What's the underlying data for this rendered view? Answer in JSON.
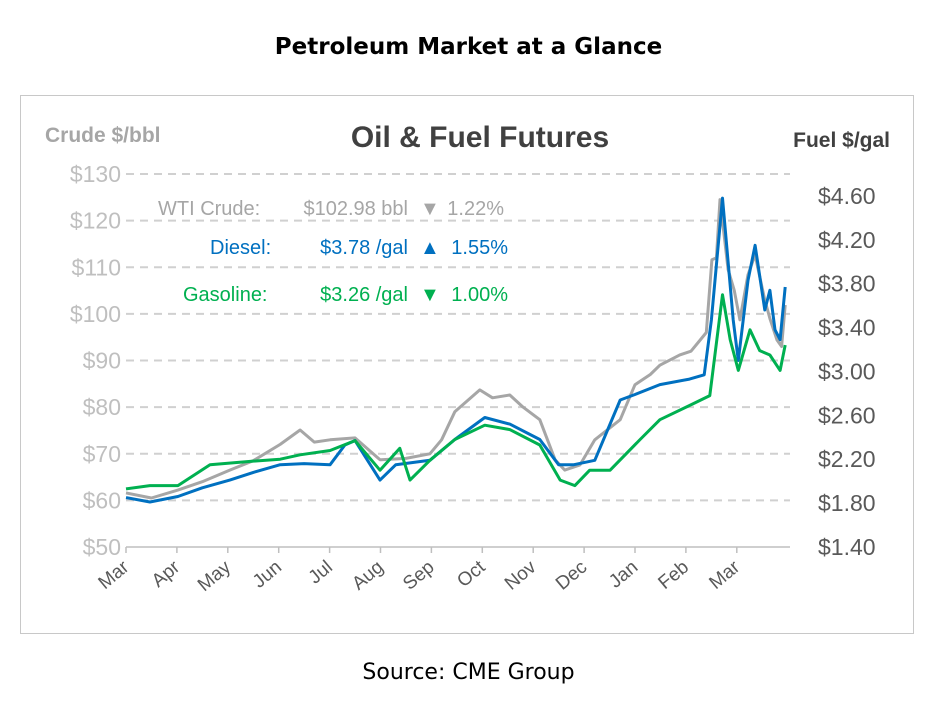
{
  "page_title": "Petroleum Market at a Glance",
  "source": "Source: CME Group",
  "colors": {
    "crude": "#a6a6a6",
    "diesel": "#0070c0",
    "gasoline": "#00b050",
    "right_axis": "#595959",
    "left_axis": "#bfbfbf"
  },
  "chart_data": {
    "type": "line",
    "title": "Oil & Fuel Futures",
    "ylabel_left": "Crude $/bbl",
    "ylabel_right": "Fuel $/gal",
    "ylim_left": [
      50,
      130
    ],
    "ylim_right": [
      1.4,
      4.8
    ],
    "yticks_left": [
      "$50",
      "$60",
      "$70",
      "$80",
      "$90",
      "$100",
      "$110",
      "$120",
      "$130"
    ],
    "yticks_right": [
      "$1.40",
      "$1.80",
      "$2.20",
      "$2.60",
      "$3.00",
      "$3.40",
      "$3.80",
      "$4.20",
      "$4.60"
    ],
    "x_unit": "months since start",
    "xticks": [
      "Mar",
      "Apr",
      "May",
      "Jun",
      "Jul",
      "Aug",
      "Sep",
      "Oct",
      "Nov",
      "Dec",
      "Jan",
      "Feb",
      "Mar"
    ],
    "grid": "horizontal dashed",
    "legend": [
      {
        "label": "WTI Crude:",
        "price": "$102.98 bbl",
        "arrow": "▼",
        "change": "1.22%"
      },
      {
        "label": "Diesel:",
        "price": "$3.78 /gal",
        "arrow": "▲",
        "change": "1.55%"
      },
      {
        "label": "Gasoline:",
        "price": "$3.26 /gal",
        "arrow": "▼",
        "change": "1.00%"
      }
    ],
    "series": [
      {
        "name": "WTI Crude",
        "axis": "left",
        "points": [
          [
            0,
            61.6
          ],
          [
            0.5,
            60.5
          ],
          [
            1.02,
            62.2
          ],
          [
            1.5,
            64
          ],
          [
            2.04,
            66.5
          ],
          [
            2.5,
            68.5
          ],
          [
            3.03,
            72
          ],
          [
            3.42,
            75.1
          ],
          [
            3.7,
            72.5
          ],
          [
            4.01,
            73
          ],
          [
            4.5,
            73.4
          ],
          [
            4.99,
            68.7
          ],
          [
            5.5,
            69
          ],
          [
            5.97,
            70
          ],
          [
            6.2,
            73
          ],
          [
            6.46,
            79
          ],
          [
            6.95,
            83.7
          ],
          [
            7.2,
            82
          ],
          [
            7.54,
            82.6
          ],
          [
            7.8,
            80
          ],
          [
            8.13,
            77.3
          ],
          [
            8.43,
            68.7
          ],
          [
            8.62,
            66.5
          ],
          [
            8.92,
            67.6
          ],
          [
            9.21,
            73
          ],
          [
            9.71,
            77.3
          ],
          [
            10,
            84.8
          ],
          [
            10.3,
            87
          ],
          [
            10.49,
            89
          ],
          [
            10.88,
            91.2
          ],
          [
            11.1,
            92
          ],
          [
            11.28,
            94.4
          ],
          [
            11.4,
            96
          ],
          [
            11.51,
            111.6
          ],
          [
            11.6,
            112
          ],
          [
            11.67,
            124.5
          ],
          [
            11.83,
            109.5
          ],
          [
            11.95,
            105
          ],
          [
            12.06,
            98.7
          ],
          [
            12.22,
            108.4
          ],
          [
            12.36,
            112.7
          ],
          [
            12.45,
            108
          ],
          [
            12.55,
            103
          ],
          [
            12.65,
            99
          ],
          [
            12.79,
            94.4
          ],
          [
            12.88,
            93
          ],
          [
            12.95,
            101.9
          ]
        ]
      },
      {
        "name": "Diesel",
        "axis": "right",
        "points": [
          [
            0,
            1.85
          ],
          [
            0.47,
            1.81
          ],
          [
            1.02,
            1.86
          ],
          [
            1.5,
            1.94
          ],
          [
            2.04,
            2.01
          ],
          [
            2.5,
            2.08
          ],
          [
            3.03,
            2.15
          ],
          [
            3.5,
            2.16
          ],
          [
            4.01,
            2.15
          ],
          [
            4.3,
            2.33
          ],
          [
            4.5,
            2.37
          ],
          [
            4.99,
            2.01
          ],
          [
            5.3,
            2.15
          ],
          [
            5.97,
            2.19
          ],
          [
            6.46,
            2.38
          ],
          [
            7.05,
            2.58
          ],
          [
            7.54,
            2.52
          ],
          [
            8.13,
            2.38
          ],
          [
            8.5,
            2.15
          ],
          [
            8.8,
            2.15
          ],
          [
            9.21,
            2.19
          ],
          [
            9.71,
            2.74
          ],
          [
            10,
            2.79
          ],
          [
            10.49,
            2.88
          ],
          [
            11.07,
            2.93
          ],
          [
            11.36,
            2.97
          ],
          [
            11.5,
            3.47
          ],
          [
            11.72,
            4.58
          ],
          [
            11.93,
            3.47
          ],
          [
            12.03,
            3.1
          ],
          [
            12.22,
            3.83
          ],
          [
            12.36,
            4.15
          ],
          [
            12.55,
            3.56
          ],
          [
            12.65,
            3.74
          ],
          [
            12.75,
            3.38
          ],
          [
            12.85,
            3.29
          ],
          [
            12.95,
            3.77
          ]
        ]
      },
      {
        "name": "Gasoline",
        "axis": "right",
        "points": [
          [
            0,
            1.93
          ],
          [
            0.47,
            1.96
          ],
          [
            1.02,
            1.96
          ],
          [
            1.65,
            2.15
          ],
          [
            2.44,
            2.18
          ],
          [
            3.03,
            2.2
          ],
          [
            3.42,
            2.24
          ],
          [
            4.01,
            2.28
          ],
          [
            4.5,
            2.37
          ],
          [
            4.99,
            2.1
          ],
          [
            5.38,
            2.3
          ],
          [
            5.58,
            2.01
          ],
          [
            5.97,
            2.19
          ],
          [
            6.46,
            2.38
          ],
          [
            7.05,
            2.51
          ],
          [
            7.54,
            2.47
          ],
          [
            8.13,
            2.33
          ],
          [
            8.53,
            2.01
          ],
          [
            8.82,
            1.96
          ],
          [
            9.11,
            2.1
          ],
          [
            9.51,
            2.1
          ],
          [
            10.1,
            2.38
          ],
          [
            10.49,
            2.56
          ],
          [
            11.07,
            2.69
          ],
          [
            11.47,
            2.78
          ],
          [
            11.72,
            3.7
          ],
          [
            11.87,
            3.29
          ],
          [
            12.03,
            3.01
          ],
          [
            12.26,
            3.38
          ],
          [
            12.45,
            3.19
          ],
          [
            12.65,
            3.15
          ],
          [
            12.85,
            3.01
          ],
          [
            12.95,
            3.24
          ]
        ]
      }
    ]
  }
}
